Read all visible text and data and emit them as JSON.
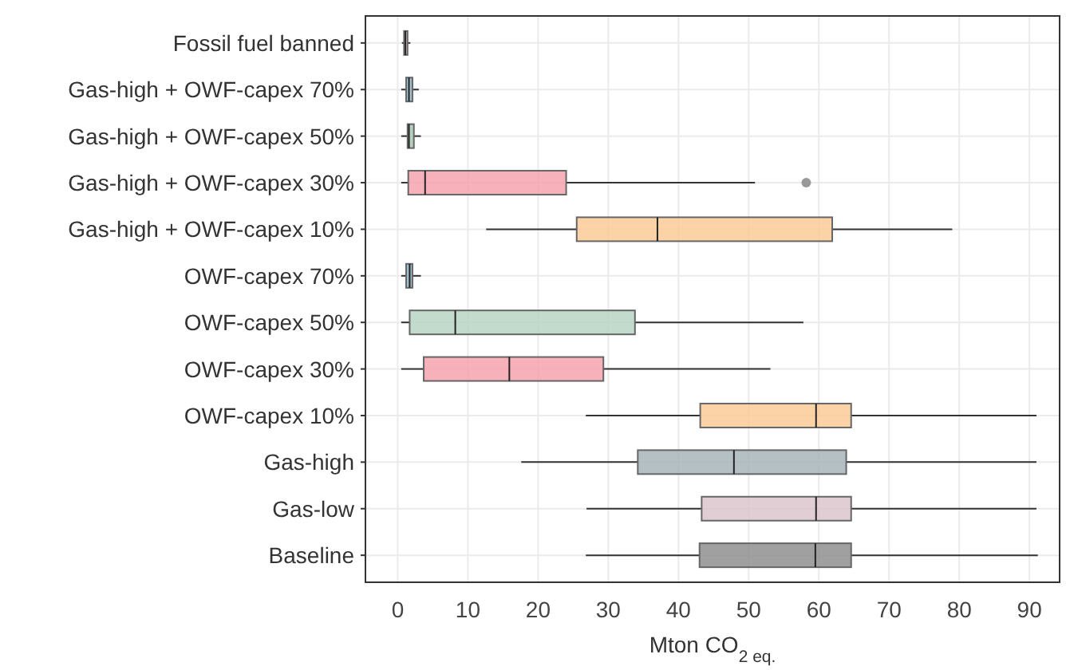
{
  "chart_data": {
    "type": "box",
    "orientation": "horizontal",
    "xlabel": "Mton CO$_{2 eq.}$",
    "categories": [
      "Fossil fuel banned",
      "Gas-high + OWF-capex 70%",
      "Gas-high + OWF-capex 50%",
      "Gas-high + OWF-capex 30%",
      "Gas-high + OWF-capex 10%",
      "OWF-capex 70%",
      "OWF-capex 50%",
      "OWF-capex 30%",
      "OWF-capex 10%",
      "Gas-high",
      "Gas-low",
      "Baseline"
    ],
    "boxes": [
      {
        "low": 0.6,
        "q1": 0.9,
        "median": 1.1,
        "q3": 1.4,
        "high": 1.8
      },
      {
        "low": 0.5,
        "q1": 1.2,
        "median": 1.6,
        "q3": 2.1,
        "high": 3.0
      },
      {
        "low": 0.5,
        "q1": 1.4,
        "median": 1.6,
        "q3": 2.3,
        "high": 3.3
      },
      {
        "low": 0.5,
        "q1": 1.5,
        "median": 3.9,
        "q3": 24.0,
        "high": 50.9,
        "outliers": [
          58.2
        ]
      },
      {
        "low": 12.6,
        "q1": 25.5,
        "median": 37.0,
        "q3": 61.9,
        "high": 79.0
      },
      {
        "low": 0.5,
        "q1": 1.2,
        "median": 1.7,
        "q3": 2.1,
        "high": 3.3
      },
      {
        "low": 0.5,
        "q1": 1.7,
        "median": 8.2,
        "q3": 33.8,
        "high": 57.8
      },
      {
        "low": 0.5,
        "q1": 3.7,
        "median": 15.9,
        "q3": 29.3,
        "high": 53.1
      },
      {
        "low": 26.8,
        "q1": 43.1,
        "median": 59.6,
        "q3": 64.6,
        "high": 91.0
      },
      {
        "low": 17.6,
        "q1": 34.2,
        "median": 47.9,
        "q3": 63.9,
        "high": 91.0
      },
      {
        "low": 26.9,
        "q1": 43.3,
        "median": 59.6,
        "q3": 64.6,
        "high": 91.0
      },
      {
        "low": 26.8,
        "q1": 43.0,
        "median": 59.5,
        "q3": 64.6,
        "high": 91.2
      }
    ],
    "colors": [
      "#dcc6cc",
      "#8fb6c6",
      "#a9c9b1",
      "#f6a3ae",
      "#fccb96",
      "#8fb6c6",
      "#b7d5c4",
      "#f6a3ae",
      "#fccb96",
      "#a7b5ba",
      "#dcc5cc",
      "#8f8f8f"
    ],
    "xlim": [
      -4.6,
      94.3
    ],
    "xticks": [
      0,
      10,
      20,
      30,
      40,
      50,
      60,
      70,
      80,
      90
    ],
    "grid": true
  }
}
